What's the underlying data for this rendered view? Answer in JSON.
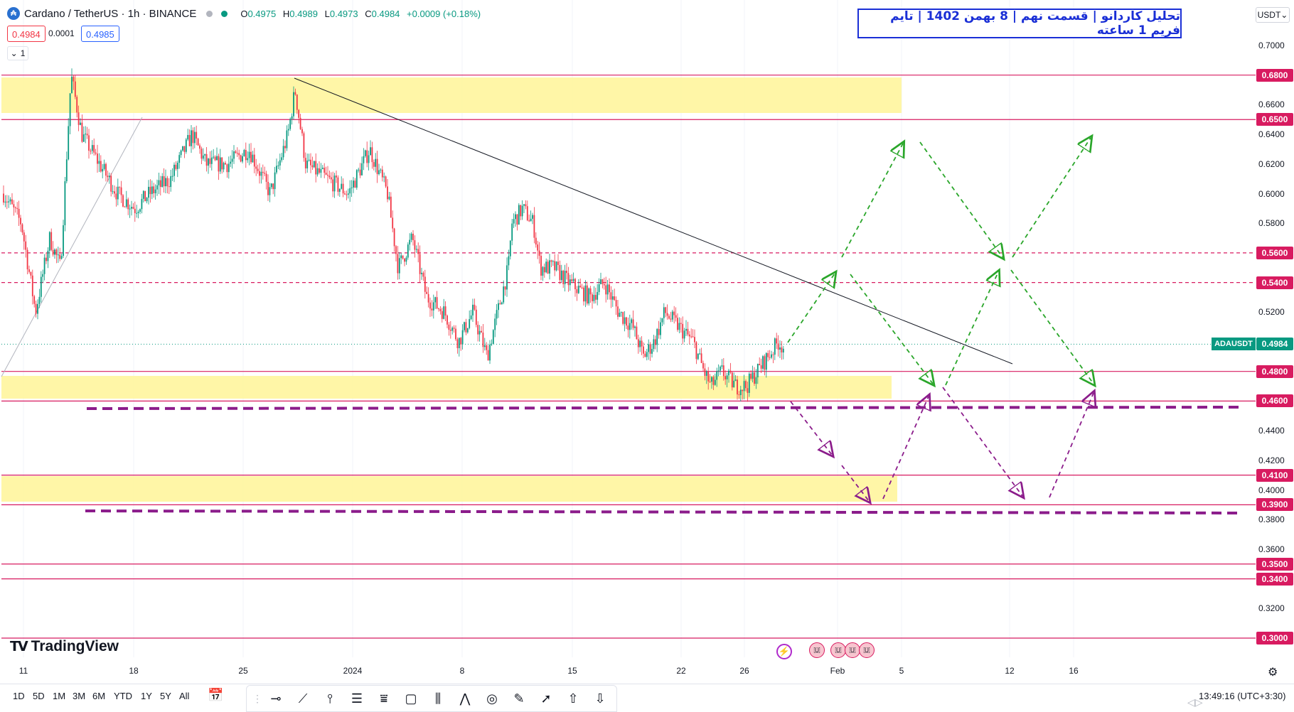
{
  "header": {
    "symbol": "Cardano / TetherUS · 1h · BINANCE",
    "ohlc": {
      "o_key": "O",
      "o": "0.4975",
      "h_key": "H",
      "h": "0.4989",
      "l_key": "L",
      "l": "0.4973",
      "c_key": "C",
      "c": "0.4984",
      "change": "+0.0009 (+0.18%)"
    },
    "bid": "0.4984",
    "spread": "0.0001",
    "ask": "0.4985",
    "collapse_label": "1"
  },
  "title_text": "تحلیل کاردانو | قسمت نهم | 8 بهمن 1402 | تایم فریم 1 ساعته",
  "price_axis": {
    "currency": "USDT",
    "ticks": [
      "0.7000",
      "0.6600",
      "0.6400",
      "0.6200",
      "0.6000",
      "0.5800",
      "0.5200",
      "0.4400",
      "0.4200",
      "0.4000",
      "0.3800",
      "0.3600",
      "0.3200"
    ],
    "levels": [
      "0.6800",
      "0.6500",
      "0.5600",
      "0.5400",
      "0.4800",
      "0.4600",
      "0.4100",
      "0.3900",
      "0.3500",
      "0.3400",
      "0.3000"
    ],
    "symbol_tag": "ADAUSDT",
    "last_price": "0.4984"
  },
  "time_axis": [
    "11",
    "18",
    "25",
    "2024",
    "8",
    "15",
    "22",
    "26",
    "Feb",
    "5",
    "12",
    "16"
  ],
  "branding": {
    "logo_text": "TradingView"
  },
  "range_buttons": [
    "1D",
    "5D",
    "1M",
    "3M",
    "6M",
    "YTD",
    "1Y",
    "5Y",
    "All"
  ],
  "clock": "13:49:16 (UTC+3:30)",
  "colors": {
    "level_line": "#d81b60",
    "zone_fill": "#fff59d",
    "bull_arrow": "#2aa62a",
    "bear_arrow": "#8b1c8b",
    "up_candle": "#089981",
    "down_candle": "#f23645"
  },
  "icons": [
    "settings-icon",
    "calendar-icon",
    "flash-icon",
    "grip-icon",
    "horizontal-ray-icon",
    "trendline-icon",
    "vertical-line-icon",
    "parallel-channel-icon",
    "pitchfork-icon",
    "rectangle-icon",
    "bars-pattern-icon",
    "abcd-icon",
    "circle-icon",
    "brush-icon",
    "arrow-icon",
    "arrow-up-icon",
    "arrow-down-icon"
  ]
}
